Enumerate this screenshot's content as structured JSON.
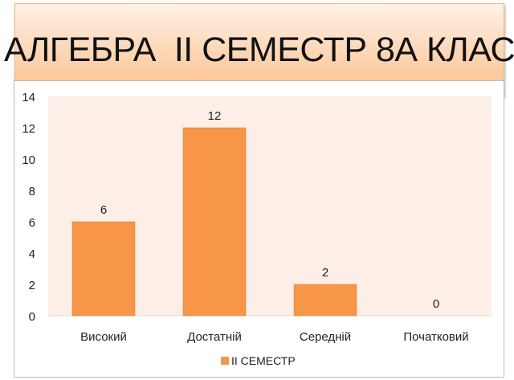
{
  "title": "АЛГЕБРА  II СЕМЕСТР 8А КЛАС",
  "colors": {
    "bar": "#f79646",
    "plot_bg": "#fdeee8"
  },
  "chart_data": {
    "type": "bar",
    "title": "АЛГЕБРА  II СЕМЕСТР 8А КЛАС",
    "categories": [
      "Високий",
      "Достатній",
      "Середній",
      "Початковий"
    ],
    "series": [
      {
        "name": "II СЕМЕСТР",
        "values": [
          6,
          12,
          2,
          0
        ]
      }
    ],
    "ylim": [
      0,
      14
    ],
    "yticks": [
      0,
      2,
      4,
      6,
      8,
      10,
      12,
      14
    ],
    "xlabel": "",
    "ylabel": "",
    "data_labels": true,
    "legend": "bottom",
    "grid": false
  }
}
